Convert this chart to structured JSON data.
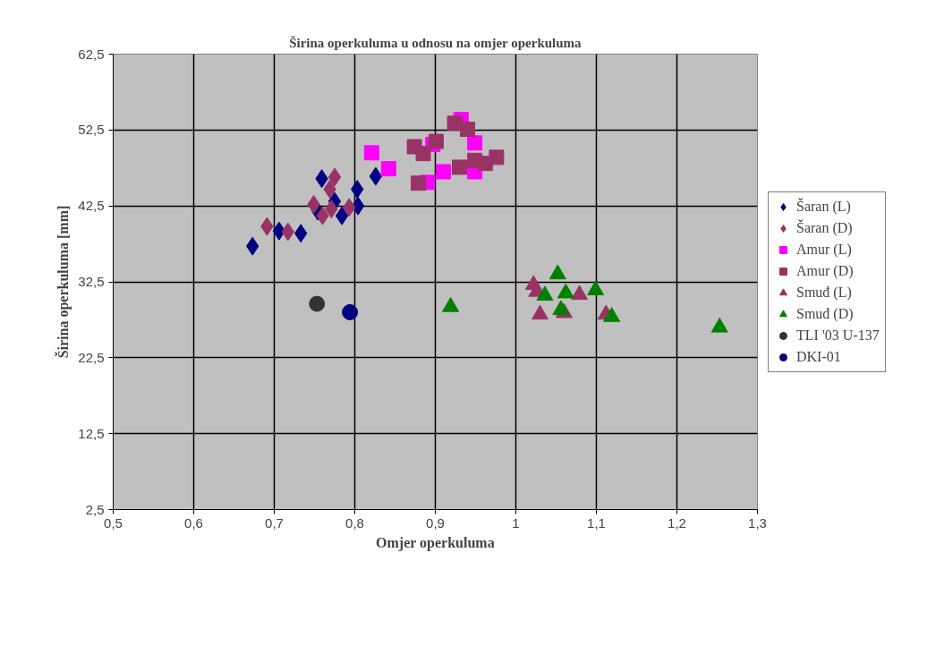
{
  "chart_data": {
    "type": "scatter",
    "title": "Širina operkuluma u odnosu na omjer operkuluma",
    "xlabel": "Omjer operkuluma",
    "ylabel": "Širina operkuluma [mm]",
    "xlim": [
      0.5,
      1.3
    ],
    "ylim": [
      2.5,
      62.5
    ],
    "xticks": [
      {
        "value": 0.5,
        "label": "0,5"
      },
      {
        "value": 0.6,
        "label": "0,6"
      },
      {
        "value": 0.7,
        "label": "0,7"
      },
      {
        "value": 0.8,
        "label": "0,8"
      },
      {
        "value": 0.9,
        "label": "0,9"
      },
      1,
      {
        "value": 1.1,
        "label": "1,1"
      },
      {
        "value": 1.2,
        "label": "1,2"
      },
      {
        "value": 1.3,
        "label": "1,3"
      }
    ],
    "yticks": [
      {
        "value": 2.5,
        "label": "2,5"
      },
      {
        "value": 12.5,
        "label": "12,5"
      },
      {
        "value": 22.5,
        "label": "22,5"
      },
      {
        "value": 32.5,
        "label": "32,5"
      },
      {
        "value": 42.5,
        "label": "42,5"
      },
      {
        "value": 52.5,
        "label": "52,5"
      },
      {
        "value": 62.5,
        "label": "62,5"
      }
    ],
    "grid": true,
    "legend": "right",
    "series": [
      {
        "name": "Šaran (L)",
        "color": "#000080",
        "marker": "diamond",
        "x": [
          0.673,
          0.706,
          0.733,
          0.759,
          0.826,
          0.803,
          0.804,
          0.784,
          0.754,
          0.775
        ],
        "values": [
          37.2,
          39.2,
          38.9,
          46.1,
          46.4,
          44.7,
          42.5,
          41.2,
          41.8,
          43.1
        ]
      },
      {
        "name": "Šaran (D)",
        "color": "#993366",
        "marker": "diamond",
        "x": [
          0.691,
          0.717,
          0.775,
          0.769,
          0.749,
          0.76,
          0.771,
          0.793
        ],
        "values": [
          39.8,
          39.1,
          46.3,
          44.7,
          42.7,
          41.2,
          42.1,
          42.3
        ]
      },
      {
        "name": "Amur (L)",
        "color": "#ff00ff",
        "marker": "square",
        "x": [
          0.821,
          0.842,
          0.89,
          0.91,
          0.949,
          0.949,
          0.932,
          0.897
        ],
        "values": [
          49.5,
          47.4,
          45.6,
          47.0,
          50.8,
          47.0,
          53.9,
          50.6
        ]
      },
      {
        "name": "Amur (D)",
        "color": "#993366",
        "marker": "square",
        "x": [
          0.874,
          0.885,
          0.901,
          0.924,
          0.94,
          0.879,
          0.93,
          0.949,
          0.962,
          0.976
        ],
        "values": [
          50.3,
          49.4,
          51.0,
          53.4,
          52.6,
          45.5,
          47.6,
          48.5,
          48.1,
          48.9
        ]
      },
      {
        "name": "Smuđ (L)",
        "color": "#993366",
        "marker": "triangle",
        "x": [
          1.022,
          1.026,
          1.03,
          1.06,
          1.079,
          1.112
        ],
        "values": [
          32.1,
          31.2,
          28.2,
          28.4,
          30.8,
          28.2
        ]
      },
      {
        "name": "Smuđ (D)",
        "color": "#008000",
        "marker": "triangle",
        "x": [
          0.919,
          1.052,
          1.036,
          1.062,
          1.056,
          1.099,
          1.119,
          1.253
        ],
        "values": [
          29.2,
          33.5,
          30.7,
          31.0,
          28.8,
          31.4,
          27.9,
          26.5
        ]
      },
      {
        "name": "TLI '03 U-137",
        "color": "#333333",
        "marker": "circle",
        "x": [
          0.753
        ],
        "values": [
          29.6
        ]
      },
      {
        "name": "DKI-01",
        "color": "#000080",
        "marker": "circle",
        "x": [
          0.794
        ],
        "values": [
          28.5
        ]
      }
    ]
  }
}
